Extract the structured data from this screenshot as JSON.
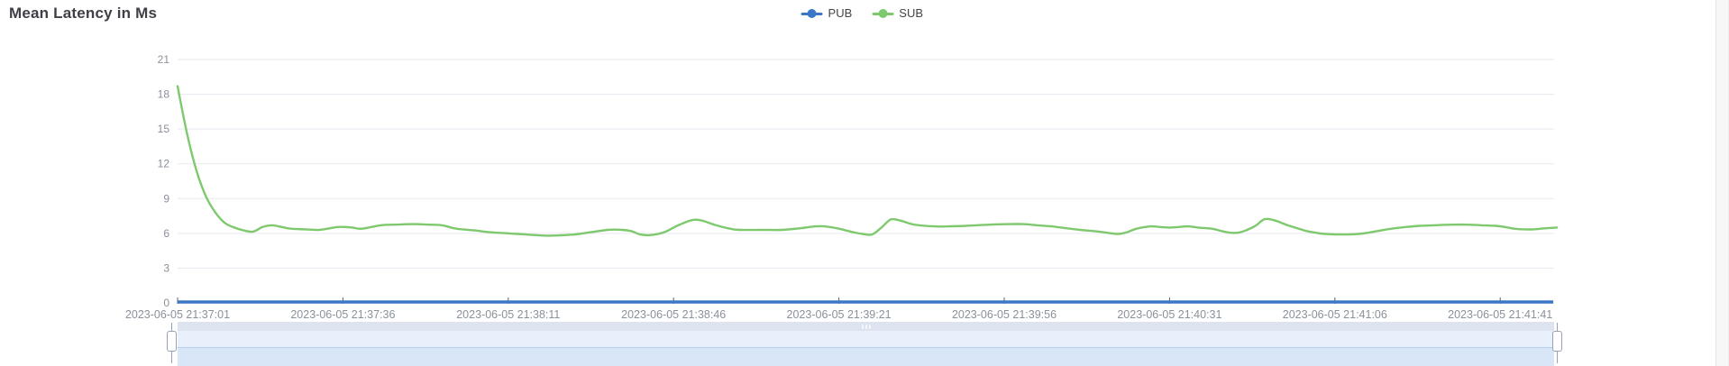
{
  "title": "Mean Latency in Ms",
  "legend": [
    {
      "label": "PUB",
      "color": "#3c76c6",
      "icon": "line-dot-marker-icon"
    },
    {
      "label": "SUB",
      "color": "#7ec96d",
      "icon": "line-dot-marker-icon"
    }
  ],
  "colors": {
    "pub_series": "#3c76c6",
    "sub_series": "#7ec96d",
    "gridline": "#e6e9f0",
    "axis_label": "#8b909a",
    "axis_tick": "#555d6e",
    "slider_track": "#dde4ef",
    "slider_selection": "#e8f0fb",
    "slider_handle_border": "#97a2b6"
  },
  "chart_data": {
    "type": "line",
    "title": "Mean Latency in Ms",
    "xlabel": "",
    "ylabel": "",
    "ylim": [
      0,
      21
    ],
    "y_ticks": [
      0,
      3,
      6,
      9,
      12,
      15,
      18,
      21
    ],
    "grid": true,
    "legend_position": "top-center",
    "x_unit": "seconds since first sample",
    "x_tick_interval_seconds": 35,
    "x_tick_labels": [
      "2023-06-05 21:37:01",
      "2023-06-05 21:37:36",
      "2023-06-05 21:38:11",
      "2023-06-05 21:38:46",
      "2023-06-05 21:39:21",
      "2023-06-05 21:39:56",
      "2023-06-05 21:40:31",
      "2023-06-05 21:41:06",
      "2023-06-05 21:41:41"
    ],
    "series": [
      {
        "name": "PUB",
        "color": "#3c76c6",
        "points": [
          [
            0,
            0
          ],
          [
            292,
            0
          ]
        ]
      },
      {
        "name": "SUB",
        "color": "#7ec96d",
        "points": [
          [
            0,
            18.7
          ],
          [
            2,
            14.6
          ],
          [
            4,
            11.4
          ],
          [
            6,
            9.2
          ],
          [
            8,
            7.8
          ],
          [
            10,
            6.9
          ],
          [
            12,
            6.5
          ],
          [
            14,
            6.25
          ],
          [
            16,
            6.15
          ],
          [
            18,
            6.55
          ],
          [
            20,
            6.7
          ],
          [
            22,
            6.55
          ],
          [
            24,
            6.4
          ],
          [
            27,
            6.35
          ],
          [
            30,
            6.3
          ],
          [
            34,
            6.55
          ],
          [
            37,
            6.5
          ],
          [
            39,
            6.4
          ],
          [
            43,
            6.7
          ],
          [
            46,
            6.75
          ],
          [
            50,
            6.8
          ],
          [
            53,
            6.75
          ],
          [
            56,
            6.7
          ],
          [
            59,
            6.4
          ],
          [
            63,
            6.25
          ],
          [
            66,
            6.1
          ],
          [
            72,
            5.95
          ],
          [
            78,
            5.8
          ],
          [
            82,
            5.85
          ],
          [
            85,
            5.95
          ],
          [
            91,
            6.3
          ],
          [
            94,
            6.3
          ],
          [
            96,
            6.2
          ],
          [
            98,
            5.9
          ],
          [
            100,
            5.85
          ],
          [
            103,
            6.1
          ],
          [
            106,
            6.7
          ],
          [
            109,
            7.15
          ],
          [
            111,
            7.1
          ],
          [
            114,
            6.7
          ],
          [
            117,
            6.4
          ],
          [
            119,
            6.3
          ],
          [
            124,
            6.3
          ],
          [
            128,
            6.3
          ],
          [
            132,
            6.45
          ],
          [
            135,
            6.6
          ],
          [
            137,
            6.6
          ],
          [
            140,
            6.4
          ],
          [
            143,
            6.1
          ],
          [
            145,
            5.95
          ],
          [
            147,
            5.9
          ],
          [
            149,
            6.5
          ],
          [
            151,
            7.2
          ],
          [
            153,
            7.1
          ],
          [
            156,
            6.75
          ],
          [
            160,
            6.6
          ],
          [
            163,
            6.6
          ],
          [
            167,
            6.65
          ],
          [
            172,
            6.75
          ],
          [
            176,
            6.8
          ],
          [
            179,
            6.8
          ],
          [
            182,
            6.7
          ],
          [
            185,
            6.6
          ],
          [
            188,
            6.45
          ],
          [
            191,
            6.3
          ],
          [
            195,
            6.15
          ],
          [
            199,
            5.95
          ],
          [
            201,
            6.1
          ],
          [
            203,
            6.4
          ],
          [
            206,
            6.6
          ],
          [
            208,
            6.55
          ],
          [
            210,
            6.5
          ],
          [
            212,
            6.55
          ],
          [
            214,
            6.6
          ],
          [
            216,
            6.5
          ],
          [
            219,
            6.4
          ],
          [
            221,
            6.2
          ],
          [
            223,
            6.05
          ],
          [
            225,
            6.1
          ],
          [
            228,
            6.6
          ],
          [
            230,
            7.2
          ],
          [
            232,
            7.15
          ],
          [
            235,
            6.7
          ],
          [
            237,
            6.45
          ],
          [
            239,
            6.2
          ],
          [
            241,
            6.05
          ],
          [
            243,
            5.95
          ],
          [
            247,
            5.9
          ],
          [
            250,
            5.95
          ],
          [
            252,
            6.05
          ],
          [
            254,
            6.2
          ],
          [
            257,
            6.4
          ],
          [
            260,
            6.55
          ],
          [
            263,
            6.65
          ],
          [
            266,
            6.7
          ],
          [
            270,
            6.75
          ],
          [
            273,
            6.75
          ],
          [
            276,
            6.7
          ],
          [
            279,
            6.65
          ],
          [
            281,
            6.55
          ],
          [
            283,
            6.4
          ],
          [
            285,
            6.35
          ],
          [
            287,
            6.35
          ],
          [
            290,
            6.45
          ],
          [
            292,
            6.5
          ]
        ]
      }
    ]
  },
  "slider": {
    "type": "range-selector",
    "grip_icon": "grip-dots-icon",
    "selection": "full-range"
  }
}
